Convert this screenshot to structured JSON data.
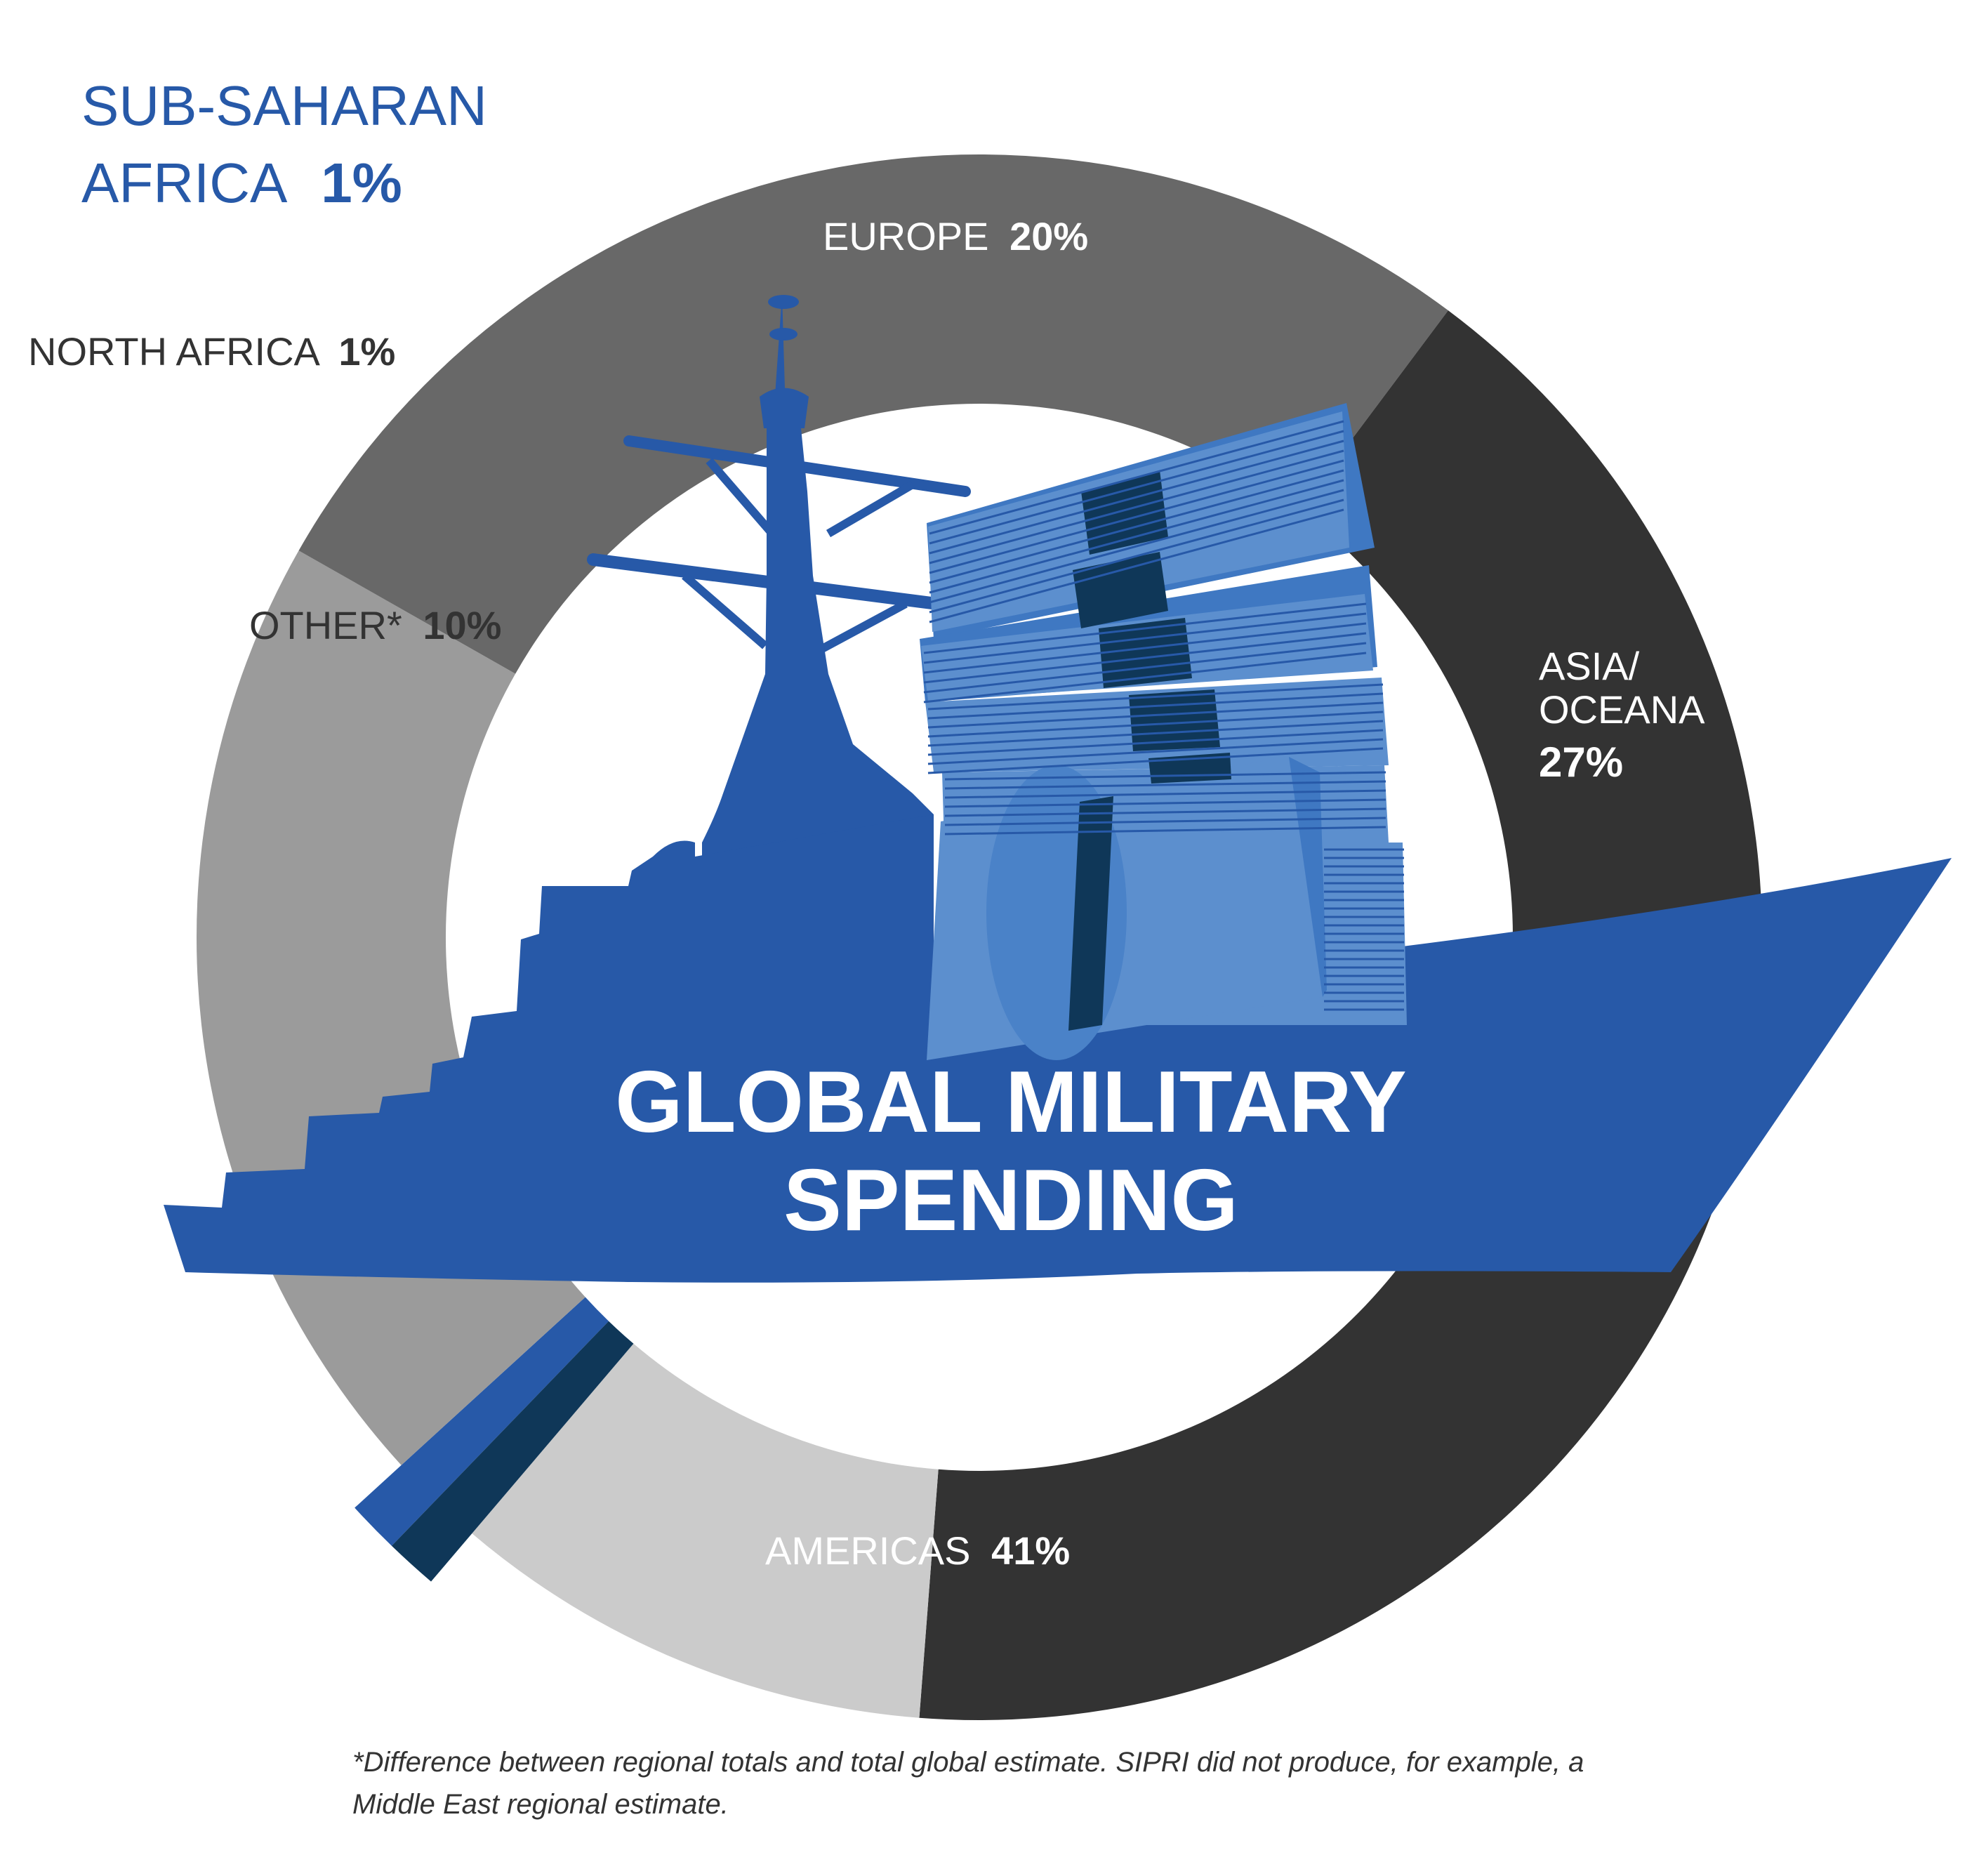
{
  "chart_data": {
    "type": "pie",
    "title": "GLOBAL MILITARY SPENDING",
    "slices": [
      {
        "name": "SUB-SAHARAN AFRICA",
        "value": 1,
        "value_label": "1%",
        "color": "#2759a8"
      },
      {
        "name": "EUROPE",
        "value": 20,
        "value_label": "20%",
        "color": "#9b9b9b"
      },
      {
        "name": "ASIA/ OCEANA",
        "value": 27,
        "value_label": "27%",
        "color": "#686868"
      },
      {
        "name": "AMERICAS",
        "value": 41,
        "value_label": "41%",
        "color": "#333333"
      },
      {
        "name": "OTHER*",
        "value": 10,
        "value_label": "10%",
        "color": "#cbcbcb"
      },
      {
        "name": "NORTH AFRICA",
        "value": 1,
        "value_label": "1%",
        "color": "#0f3758"
      }
    ]
  },
  "labels": {
    "sub_saharan_line1": "SUB-SAHARAN",
    "sub_saharan_line2": "AFRICA",
    "sub_saharan_value": "1%",
    "north_africa_name": "NORTH AFRICA",
    "north_africa_value": "1%",
    "europe_name": "EUROPE",
    "europe_value": "20%",
    "asia_line1": "ASIA/",
    "asia_line2": "OCEANA",
    "asia_value": "27%",
    "other_name": "OTHER*",
    "other_value": "10%",
    "americas_name": "AMERICAS",
    "americas_value": "41%",
    "title_line1": "GLOBAL MILITARY",
    "title_line2": "SPENDING"
  },
  "footnote": "*Difference between regional totals and total global estimate. SIPRI did not produce, for example, a Middle East regional estimate.",
  "colors": {
    "ship": "#2759a8",
    "money_light": "#5c8fce",
    "money_mid": "#3f78c2",
    "money_band": "#0f3758"
  }
}
